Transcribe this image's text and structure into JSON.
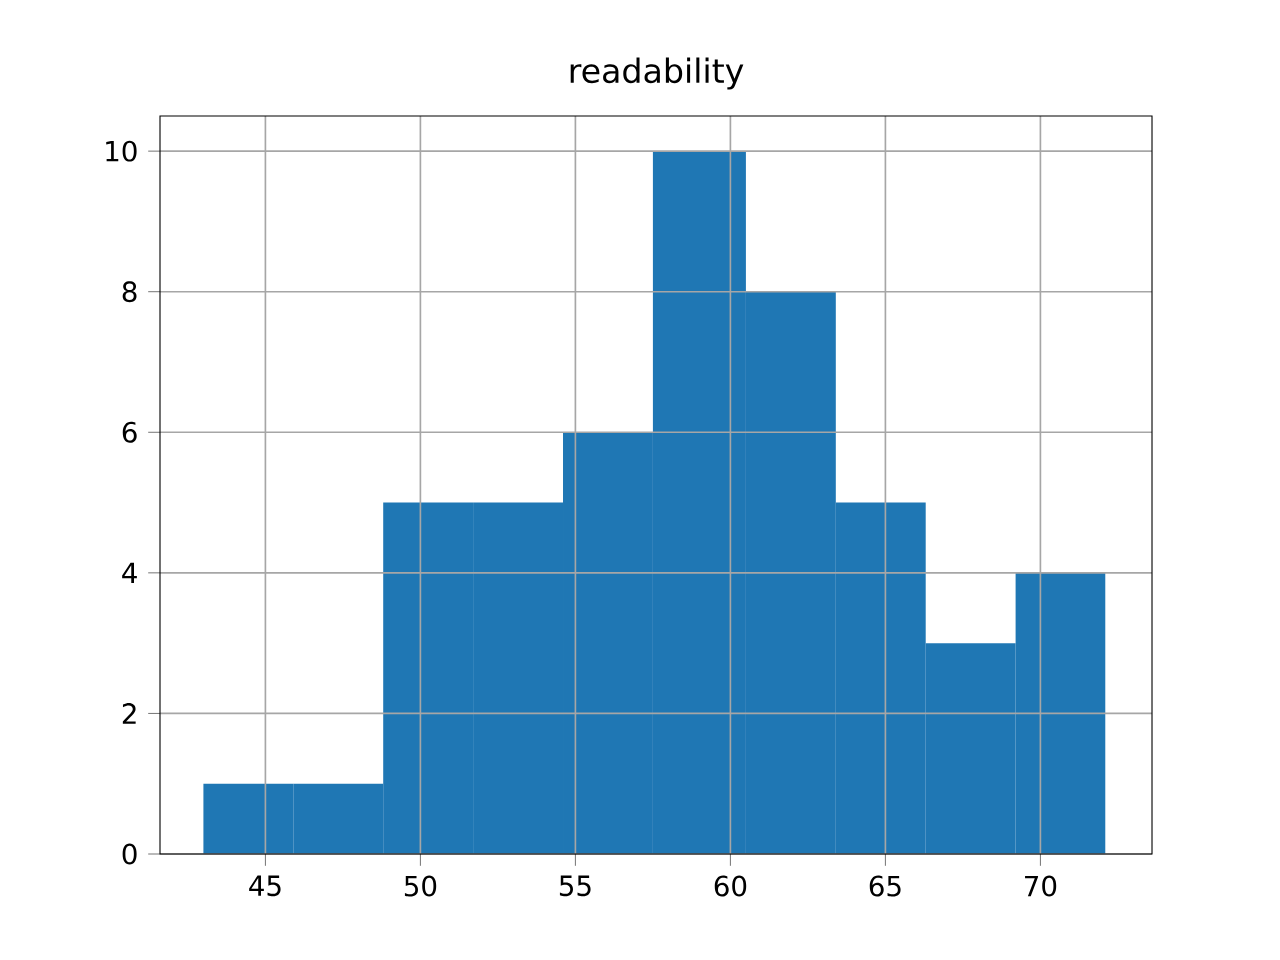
{
  "chart_data": {
    "type": "histogram",
    "title": "readability",
    "bins": [
      43,
      45.9,
      48.8,
      51.7,
      54.6,
      57.5,
      60.5,
      63.4,
      66.3,
      69.2,
      72.1
    ],
    "values": [
      1,
      1,
      5,
      5,
      6,
      10,
      8,
      5,
      3,
      4
    ],
    "color": "#1f77b4",
    "xlim": [
      41.6,
      73.6
    ],
    "ylim": [
      0,
      10.5
    ],
    "xticks": [
      45,
      50,
      55,
      60,
      65,
      70
    ],
    "yticks": [
      0,
      2,
      4,
      6,
      8,
      10
    ],
    "grid": true
  }
}
